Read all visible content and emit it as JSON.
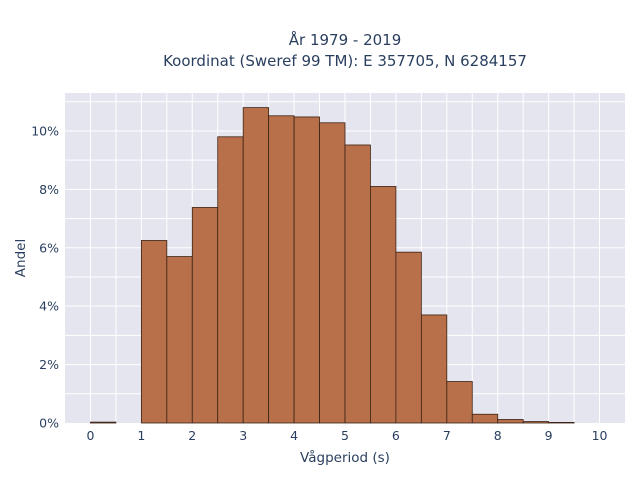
{
  "chart_data": {
    "type": "bar",
    "title_line1": "År 1979 - 2019",
    "title_line2": "Koordinat (Sweref 99 TM): E 357705, N 6284157",
    "xlabel": "Vågperiod (s)",
    "ylabel": "Andel",
    "x_ticks": [
      "0",
      "1",
      "2",
      "3",
      "4",
      "5",
      "6",
      "7",
      "8",
      "9",
      "10"
    ],
    "y_ticks": [
      "0%",
      "2%",
      "4%",
      "6%",
      "8%",
      "10%"
    ],
    "xlim": [
      -0.5,
      10.5
    ],
    "ylim": [
      0,
      11.3
    ],
    "bin_width": 0.5,
    "bins": [
      {
        "x0": 0.0,
        "value": 0.03
      },
      {
        "x0": 1.0,
        "value": 6.25
      },
      {
        "x0": 1.5,
        "value": 5.7
      },
      {
        "x0": 2.0,
        "value": 7.38
      },
      {
        "x0": 2.5,
        "value": 9.8
      },
      {
        "x0": 3.0,
        "value": 10.8
      },
      {
        "x0": 3.5,
        "value": 10.52
      },
      {
        "x0": 4.0,
        "value": 10.48
      },
      {
        "x0": 4.5,
        "value": 10.28
      },
      {
        "x0": 5.0,
        "value": 9.52
      },
      {
        "x0": 5.5,
        "value": 8.1
      },
      {
        "x0": 6.0,
        "value": 5.85
      },
      {
        "x0": 6.5,
        "value": 3.7
      },
      {
        "x0": 7.0,
        "value": 1.42
      },
      {
        "x0": 7.5,
        "value": 0.3
      },
      {
        "x0": 8.0,
        "value": 0.12
      },
      {
        "x0": 8.5,
        "value": 0.05
      },
      {
        "x0": 9.0,
        "value": 0.02
      }
    ],
    "grid": true,
    "colors": {
      "bar_fill": "#b8704a",
      "bar_stroke": "#3b2214",
      "plot_bg": "#e5e5ef",
      "grid": "#ffffff"
    }
  }
}
